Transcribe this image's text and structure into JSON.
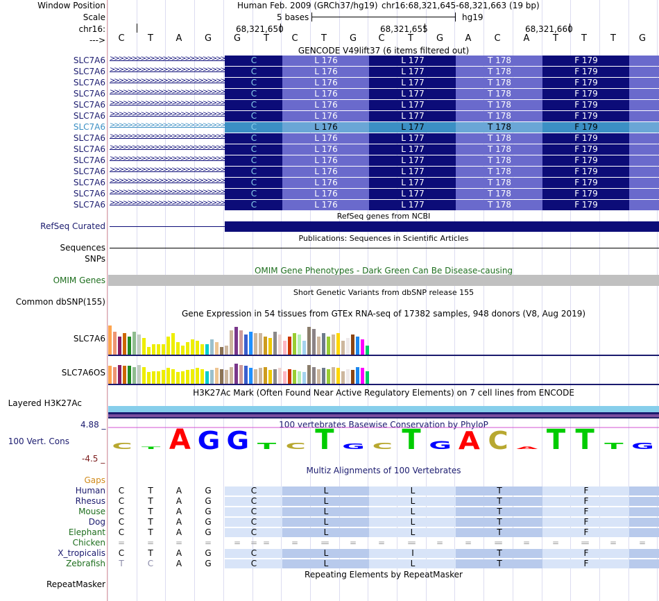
{
  "header": {
    "window_position_label": "Window Position",
    "assembly": "Human Feb. 2009 (GRCh37/hg19)",
    "region": "chr16:68,321,645-68,321,663 (19 bp)",
    "scale_label": "Scale",
    "scale_text": "5 bases",
    "scale_db": "hg19",
    "chrom_label": "chr16:",
    "ticks": [
      "68,321,650",
      "68,321,655",
      "68,321,660"
    ],
    "strand_label": "--->",
    "sequence": [
      "C",
      "T",
      "A",
      "G",
      "G",
      "T",
      "C",
      "T",
      "G",
      "C",
      "T",
      "G",
      "A",
      "C",
      "A",
      "T",
      "T",
      "T",
      "G"
    ]
  },
  "gencode": {
    "title": "GENCODE V49lift37 (6 items filtered out)",
    "rows": [
      "SLC7A6",
      "SLC7A6",
      "SLC7A6",
      "SLC7A6",
      "SLC7A6",
      "SLC7A6",
      "SLC7A6",
      "SLC7A6",
      "SLC7A6",
      "SLC7A6",
      "SLC7A6",
      "SLC7A6",
      "SLC7A6",
      "SLC7A6"
    ],
    "codons": [
      "C",
      "L 176",
      "L 177",
      "T 178",
      "F 179"
    ],
    "highlight_row": 6
  },
  "refseq": {
    "title": "RefSeq genes from NCBI",
    "label": "RefSeq Curated"
  },
  "publications": {
    "title": "Publications: Sequences in Scientific Articles"
  },
  "tracks": {
    "sequences_label": "Sequences",
    "snps_label": "SNPs",
    "omim_title": "OMIM Gene Phenotypes - Dark Green Can Be Disease-causing",
    "omim_label": "OMIM Genes",
    "dbsnp_title": "Short Genetic Variants from dbSNP release 155",
    "dbsnp_label": "Common dbSNP(155)"
  },
  "gtex": {
    "title": "Gene Expression in 54 tissues from GTEx RNA-seq of 17382 samples, 948 donors (V8, Aug 2019)",
    "genes": [
      {
        "label": "SLC7A6",
        "values": [
          0.95,
          0.75,
          0.6,
          0.7,
          0.6,
          0.75,
          0.65,
          0.55,
          0.25,
          0.35,
          0.35,
          0.35,
          0.6,
          0.7,
          0.4,
          0.3,
          0.4,
          0.5,
          0.45,
          0.35,
          0.35,
          0.5,
          0.4,
          0.25,
          0.3,
          0.8,
          0.9,
          0.8,
          0.65,
          0.75,
          0.7,
          0.7,
          0.6,
          0.55,
          0.75,
          0.65,
          0.45,
          0.6,
          0.7,
          0.65,
          0.45,
          0.9,
          0.85,
          0.6,
          0.7,
          0.6,
          0.65,
          0.7,
          0.45,
          0.55,
          0.65,
          0.6,
          0.5,
          0.3
        ]
      },
      {
        "label": "SLC7A6OS",
        "values": [
          0.85,
          0.8,
          0.9,
          0.85,
          0.85,
          0.8,
          0.9,
          0.8,
          0.55,
          0.6,
          0.6,
          0.65,
          0.75,
          0.7,
          0.55,
          0.6,
          0.65,
          0.7,
          0.75,
          0.7,
          0.6,
          0.65,
          0.75,
          0.7,
          0.65,
          0.8,
          0.95,
          0.9,
          0.85,
          0.75,
          0.7,
          0.75,
          0.8,
          0.65,
          0.7,
          0.75,
          0.6,
          0.7,
          0.65,
          0.6,
          0.55,
          0.9,
          0.8,
          0.7,
          0.75,
          0.7,
          0.8,
          0.75,
          0.6,
          0.7,
          0.65,
          0.8,
          0.75,
          0.6
        ]
      }
    ]
  },
  "h3k27ac": {
    "title": "H3K27Ac Mark (Often Found Near Active Regulatory Elements) on 7 cell lines from ENCODE",
    "label": "Layered H3K27Ac"
  },
  "conservation": {
    "title": "100 vertebrates Basewise Conservation by PhyloP",
    "label": "100 Vert. Cons",
    "max": "4.88 _",
    "min": "-4.5 _",
    "logo_values": [
      -0.3,
      0.0,
      1.0,
      0.9,
      0.9,
      0.3,
      0.3,
      1.0,
      0.25,
      0.3,
      1.0,
      0.4,
      0.9,
      0.9,
      0.0,
      1.0,
      1.0,
      0.3,
      0.3
    ]
  },
  "multiz": {
    "title": "Multiz Alignments of 100 Vertebrates",
    "gaps_label": "Gaps",
    "species": [
      {
        "name": "Human",
        "bases": [
          "C",
          "T",
          "A",
          "G"
        ],
        "aa": [
          "C",
          "L",
          "L",
          "T",
          "F"
        ]
      },
      {
        "name": "Rhesus",
        "bases": [
          "C",
          "T",
          "A",
          "G"
        ],
        "aa": [
          "C",
          "L",
          "L",
          "T",
          "F"
        ]
      },
      {
        "name": "Mouse",
        "bases": [
          "C",
          "T",
          "A",
          "G"
        ],
        "aa": [
          "C",
          "L",
          "L",
          "T",
          "F"
        ]
      },
      {
        "name": "Dog",
        "bases": [
          "C",
          "T",
          "A",
          "G"
        ],
        "aa": [
          "C",
          "L",
          "L",
          "T",
          "F"
        ]
      },
      {
        "name": "Elephant",
        "bases": [
          "C",
          "T",
          "A",
          "G"
        ],
        "aa": [
          "C",
          "L",
          "L",
          "T",
          "F"
        ]
      },
      {
        "name": "Chicken",
        "bases": [
          "=",
          "=",
          "=",
          "="
        ],
        "aa": [
          "=",
          "=",
          "=",
          "=",
          "="
        ]
      },
      {
        "name": "X_tropicalis",
        "bases": [
          "C",
          "T",
          "A",
          "G"
        ],
        "aa": [
          "C",
          "L",
          "I",
          "T",
          "F"
        ]
      },
      {
        "name": "Zebrafish",
        "bases": [
          "T",
          "C",
          "A",
          "G"
        ],
        "aa": [
          "C",
          "L",
          "L",
          "T",
          "F"
        ]
      }
    ]
  },
  "repeatmasker": {
    "title": "Repeating Elements by RepeatMasker",
    "label": "RepeatMasker"
  },
  "colors": {
    "navy": "#0c0c78",
    "light_blue": "#6a6acc",
    "highlight": "#3b8fc4",
    "omim_gray": "#c0c0c0",
    "cyan": "#87ceeb",
    "mz_light": "#d8e4f8",
    "mz_dark": "#b8caec"
  }
}
